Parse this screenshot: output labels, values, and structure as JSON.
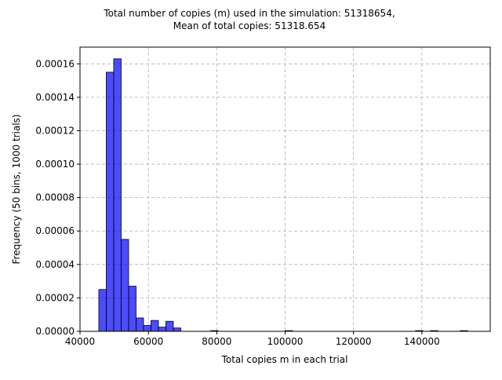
{
  "chart_data": {
    "type": "bar",
    "title_line1": "Total number of copies (m) used in the simulation: 51318654,",
    "title_line2": "Mean of total copies: 51318.654",
    "xlabel": "Total copies m in each trial",
    "ylabel": "Frequency (50 bins, 1000 trials)",
    "xlim": [
      40000,
      160000
    ],
    "ylim": [
      0,
      0.00017
    ],
    "x_ticks": [
      40000,
      60000,
      80000,
      100000,
      120000,
      140000
    ],
    "x_tick_labels": [
      "40000",
      "60000",
      "80000",
      "100000",
      "120000",
      "140000"
    ],
    "y_ticks": [
      0,
      2e-05,
      4e-05,
      6e-05,
      8e-05,
      0.0001,
      0.00012,
      0.00014,
      0.00016
    ],
    "y_tick_labels": [
      "0.00000",
      "0.00002",
      "0.00004",
      "0.00006",
      "0.00008",
      "0.00010",
      "0.00012",
      "0.00014",
      "0.00016"
    ],
    "grid": true,
    "bar_color": "#0000ff",
    "bar_edge_color": "#000000",
    "bin_width": 2180,
    "bins": [
      {
        "x0": 45500,
        "height": 2.5e-05
      },
      {
        "x0": 47680,
        "height": 0.000155
      },
      {
        "x0": 49860,
        "height": 0.000163
      },
      {
        "x0": 52040,
        "height": 5.5e-05
      },
      {
        "x0": 54220,
        "height": 2.7e-05
      },
      {
        "x0": 56400,
        "height": 8e-06
      },
      {
        "x0": 58580,
        "height": 3.5e-06
      },
      {
        "x0": 60760,
        "height": 6.5e-06
      },
      {
        "x0": 62940,
        "height": 2.5e-06
      },
      {
        "x0": 65120,
        "height": 6e-06
      },
      {
        "x0": 67300,
        "height": 2e-06
      },
      {
        "x0": 78200,
        "height": 4e-07
      },
      {
        "x0": 100000,
        "height": 4e-07
      },
      {
        "x0": 138150,
        "height": 4e-07
      },
      {
        "x0": 142500,
        "height": 4e-07
      },
      {
        "x0": 151220,
        "height": 4e-07
      }
    ]
  }
}
